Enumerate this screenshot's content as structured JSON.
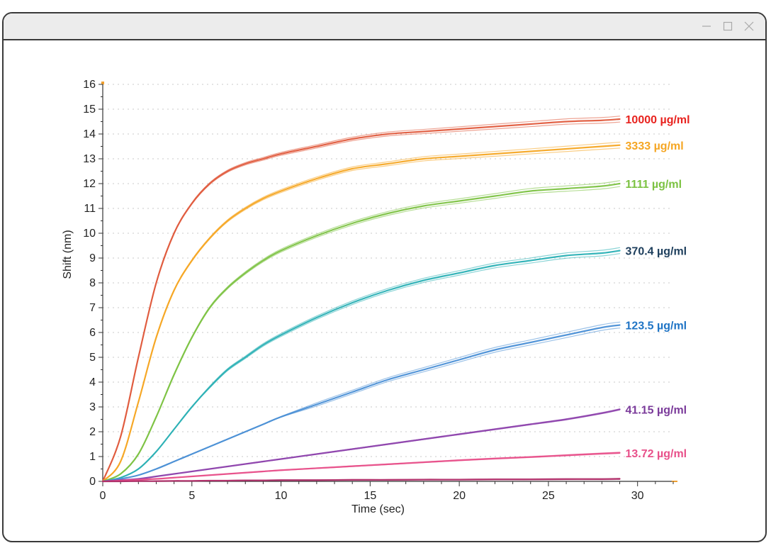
{
  "window": {
    "controls": {
      "minimize_icon": "minimize-icon",
      "maximize_icon": "maximize-icon",
      "close_icon": "close-icon"
    }
  },
  "chart_data": {
    "type": "line",
    "title": "",
    "xlabel": "Time (sec)",
    "ylabel": "Shift (nm)",
    "xlim": [
      0,
      32
    ],
    "ylim": [
      0,
      16
    ],
    "xticks": [
      0,
      5,
      10,
      15,
      20,
      25,
      30
    ],
    "yticks": [
      0,
      1,
      2,
      3,
      4,
      5,
      6,
      7,
      8,
      9,
      10,
      11,
      12,
      13,
      14,
      15,
      16
    ],
    "grid": "horizontal dotted",
    "x": [
      0,
      1,
      2,
      3,
      4,
      5,
      6,
      7,
      8,
      9,
      10,
      12,
      14,
      16,
      18,
      20,
      22,
      24,
      26,
      28,
      29
    ],
    "series": [
      {
        "name": "10000 µg/ml",
        "color": "#e05a3c",
        "label_color": "#e8231f",
        "values": [
          0,
          1.8,
          5.0,
          8.0,
          10.0,
          11.2,
          12.0,
          12.5,
          12.8,
          13.0,
          13.2,
          13.5,
          13.8,
          14.0,
          14.1,
          14.2,
          14.3,
          14.4,
          14.5,
          14.55,
          14.6
        ]
      },
      {
        "name": "3333 µg/ml",
        "color": "#f5a623",
        "label_color": "#f5a623",
        "values": [
          0,
          0.8,
          3.2,
          5.8,
          7.7,
          8.9,
          9.8,
          10.5,
          11.0,
          11.4,
          11.7,
          12.2,
          12.6,
          12.8,
          13.0,
          13.1,
          13.2,
          13.3,
          13.4,
          13.5,
          13.55
        ]
      },
      {
        "name": "1111 µg/ml",
        "color": "#7cc242",
        "label_color": "#7cc242",
        "values": [
          0,
          0.3,
          1.1,
          2.6,
          4.3,
          5.8,
          7.0,
          7.8,
          8.4,
          8.9,
          9.3,
          9.9,
          10.4,
          10.8,
          11.1,
          11.3,
          11.5,
          11.7,
          11.8,
          11.9,
          12.0
        ]
      },
      {
        "name": "370.4 µg/ml",
        "color": "#2ab0b5",
        "label_color": "#1d3e5c",
        "values": [
          0,
          0.15,
          0.5,
          1.2,
          2.1,
          3.0,
          3.8,
          4.5,
          5.0,
          5.5,
          5.9,
          6.6,
          7.2,
          7.7,
          8.1,
          8.4,
          8.7,
          8.9,
          9.1,
          9.2,
          9.3
        ]
      },
      {
        "name": "123.5 µg/ml",
        "color": "#4a8fd6",
        "label_color": "#1f74c5",
        "values": [
          0,
          0.1,
          0.25,
          0.5,
          0.8,
          1.1,
          1.4,
          1.7,
          2.0,
          2.3,
          2.6,
          3.1,
          3.6,
          4.1,
          4.5,
          4.9,
          5.3,
          5.6,
          5.9,
          6.2,
          6.3
        ]
      },
      {
        "name": "41.15 µg/ml",
        "color": "#8e44ad",
        "label_color": "#7a3a9a",
        "values": [
          0,
          0.05,
          0.1,
          0.2,
          0.3,
          0.4,
          0.5,
          0.6,
          0.7,
          0.8,
          0.9,
          1.1,
          1.3,
          1.5,
          1.7,
          1.9,
          2.1,
          2.3,
          2.5,
          2.75,
          2.9
        ]
      },
      {
        "name": "13.72  µg/ml",
        "color": "#e8508a",
        "label_color": "#e8508a",
        "values": [
          0,
          0.03,
          0.07,
          0.1,
          0.15,
          0.2,
          0.25,
          0.3,
          0.35,
          0.4,
          0.45,
          0.53,
          0.61,
          0.69,
          0.77,
          0.85,
          0.92,
          0.98,
          1.05,
          1.12,
          1.15
        ]
      },
      {
        "name": "",
        "color": "#b0306a",
        "label_color": "#b0306a",
        "values": [
          0,
          0,
          0.01,
          0.01,
          0.02,
          0.02,
          0.03,
          0.03,
          0.04,
          0.04,
          0.05,
          0.05,
          0.06,
          0.06,
          0.07,
          0.07,
          0.08,
          0.08,
          0.09,
          0.09,
          0.1
        ]
      }
    ]
  }
}
